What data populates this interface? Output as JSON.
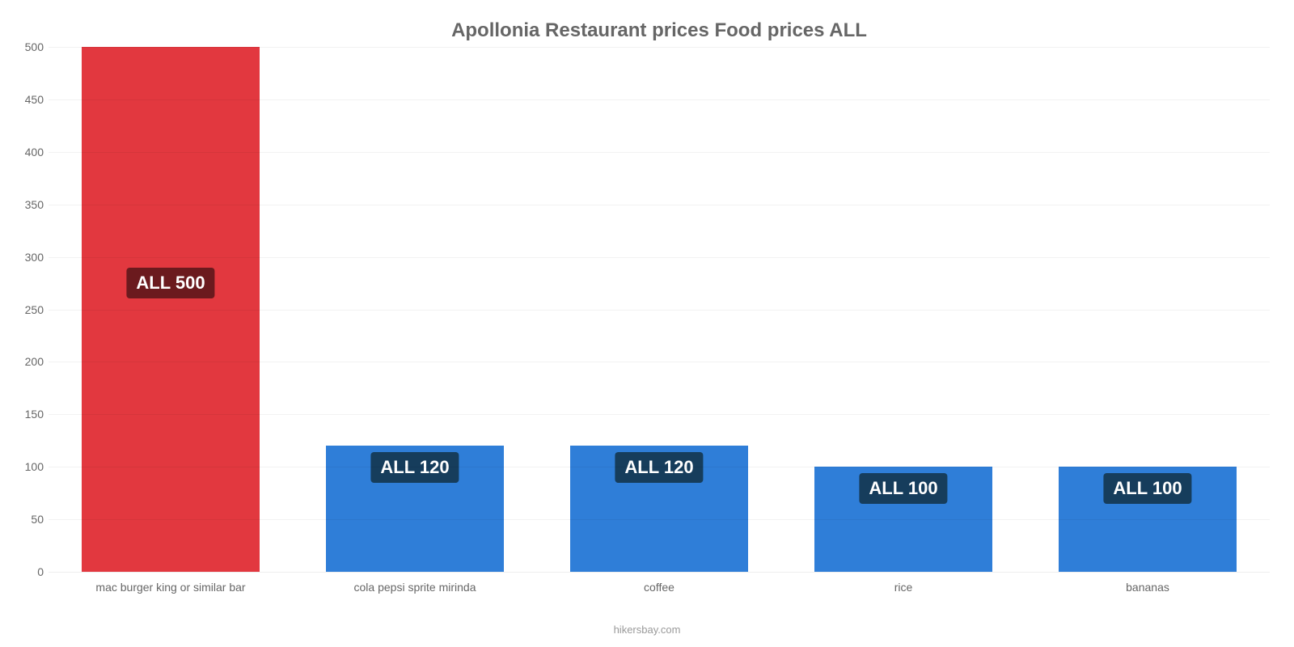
{
  "chart": {
    "type": "bar",
    "title": "Apollonia Restaurant prices Food prices ALL",
    "title_color": "#666666",
    "title_fontsize": 24,
    "background_color": "#ffffff",
    "grid_color": "rgba(0,0,0,0.05)",
    "axis_text_color": "#666666",
    "axis_fontsize": 14,
    "bar_width_ratio": 0.73,
    "y": {
      "min": 0,
      "max": 500,
      "tick_step": 50,
      "ticks": [
        0,
        50,
        100,
        150,
        200,
        250,
        300,
        350,
        400,
        450,
        500
      ]
    },
    "categories": [
      "mac burger king or similar bar",
      "cola pepsi sprite mirinda",
      "coffee",
      "rice",
      "bananas"
    ],
    "values": [
      500,
      120,
      120,
      100,
      100
    ],
    "value_labels": [
      "ALL 500",
      "ALL 120",
      "ALL 120",
      "ALL 100",
      "ALL 100"
    ],
    "bar_colors": [
      "#e2383f",
      "#2f7ed8",
      "#2f7ed8",
      "#2f7ed8",
      "#2f7ed8"
    ],
    "label_bg_colors": [
      "#6b1a1e",
      "#163d5c",
      "#163d5c",
      "#163d5c",
      "#163d5c"
    ],
    "label_text_color": "#ffffff",
    "label_fontsize": 22,
    "attribution": "hikersbay.com",
    "attribution_color": "#999999"
  }
}
